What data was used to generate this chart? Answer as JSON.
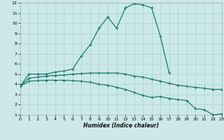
{
  "xlabel": "Humidex (Indice chaleur)",
  "bg_color": "#cce8e8",
  "grid_color": "#aad8d8",
  "line_color": "#1a7a6e",
  "xlim": [
    0,
    23
  ],
  "ylim": [
    1,
    12
  ],
  "xticks": [
    0,
    1,
    2,
    3,
    4,
    5,
    6,
    7,
    8,
    9,
    10,
    11,
    12,
    13,
    14,
    15,
    16,
    17,
    18,
    19,
    20,
    21,
    22,
    23
  ],
  "yticks": [
    1,
    2,
    3,
    4,
    5,
    6,
    7,
    8,
    9,
    10,
    11,
    12
  ],
  "curve1_x": [
    0,
    1,
    2,
    3,
    4,
    5,
    6,
    7,
    8,
    9,
    10,
    11,
    12,
    13,
    14,
    15,
    16,
    17
  ],
  "curve1_y": [
    3.8,
    5.0,
    5.0,
    5.0,
    5.2,
    5.3,
    5.5,
    6.8,
    7.9,
    9.5,
    10.6,
    9.5,
    11.5,
    11.9,
    11.8,
    11.5,
    8.7,
    5.1
  ],
  "curve2_x": [
    0,
    1,
    2,
    3,
    4,
    5,
    6,
    7,
    8,
    9,
    10,
    11,
    12,
    13,
    14,
    15,
    16,
    17,
    18,
    19,
    20,
    21,
    22,
    23
  ],
  "curve2_y": [
    3.8,
    4.6,
    4.7,
    4.8,
    4.85,
    4.9,
    5.0,
    5.05,
    5.1,
    5.1,
    5.1,
    5.1,
    5.0,
    4.8,
    4.7,
    4.5,
    4.3,
    4.1,
    3.9,
    3.8,
    3.7,
    3.6,
    3.5,
    3.5
  ],
  "curve3_x": [
    0,
    1,
    2,
    3,
    4,
    5,
    6,
    7,
    8,
    9,
    10,
    11,
    12,
    13,
    14,
    15,
    16,
    17,
    18,
    19,
    20,
    21,
    22,
    23
  ],
  "curve3_y": [
    3.8,
    4.3,
    4.35,
    4.4,
    4.4,
    4.4,
    4.35,
    4.3,
    4.2,
    4.0,
    3.9,
    3.7,
    3.5,
    3.2,
    2.9,
    2.7,
    2.8,
    2.6,
    2.5,
    2.4,
    1.6,
    1.5,
    1.0,
    1.1
  ]
}
